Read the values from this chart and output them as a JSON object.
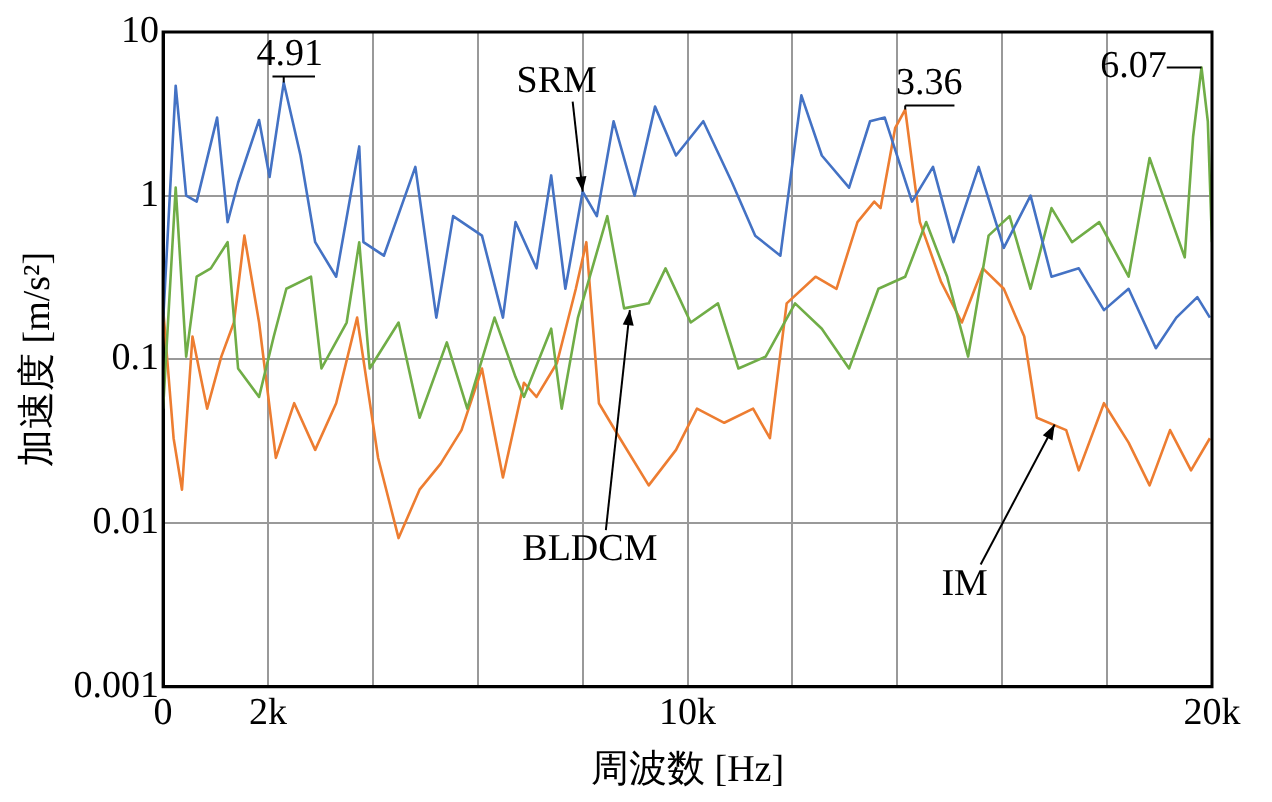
{
  "chart_data": {
    "type": "line",
    "xlabel": "周波数 [Hz]",
    "ylabel": "加速度 [m/s²]",
    "log": "y",
    "grid": true,
    "legend": false,
    "marker": "none",
    "line_style": "solid",
    "xlim": [
      0,
      20000
    ],
    "xticks": [
      0,
      {
        "value": 2000,
        "label": "2k"
      },
      {
        "value": 4000,
        "label": null
      },
      {
        "value": 6000,
        "label": null
      },
      {
        "value": 8000,
        "label": null
      },
      {
        "value": 10000,
        "label": "10k"
      },
      {
        "value": 12000,
        "label": null
      },
      {
        "value": 14000,
        "label": null
      },
      {
        "value": 16000,
        "label": null
      },
      {
        "value": 18000,
        "label": null
      },
      {
        "value": 20000,
        "label": "20k"
      }
    ],
    "ylim": [
      0.001,
      10
    ],
    "yticks": [
      0.001,
      0.01,
      0.1,
      1,
      10
    ],
    "series": [
      {
        "name": "SRM",
        "color": "#4472c4",
        "x": [
          0,
          240,
          440,
          640,
          1030,
          1230,
          1430,
          1830,
          2030,
          2300,
          2620,
          2900,
          3300,
          3740,
          3820,
          4210,
          4810,
          5210,
          5530,
          6080,
          6480,
          6720,
          7120,
          7400,
          7670,
          8000,
          8270,
          8590,
          8990,
          9380,
          9780,
          10300,
          10850,
          11290,
          11770,
          12170,
          12560,
          13080,
          13480,
          13760,
          14280,
          14680,
          15070,
          15550,
          16030,
          16540,
          16940,
          17460,
          17940,
          18410,
          18930,
          19320,
          19720,
          19960
        ],
        "values": [
          0.17,
          4.7,
          1.0,
          0.92,
          3.0,
          0.69,
          1.2,
          2.9,
          1.3,
          4.91,
          1.76,
          0.52,
          0.32,
          2.0,
          0.52,
          0.43,
          1.5,
          0.18,
          0.75,
          0.57,
          0.18,
          0.69,
          0.36,
          1.33,
          0.27,
          1.06,
          0.75,
          2.85,
          1.0,
          3.5,
          1.76,
          2.85,
          1.2,
          0.57,
          0.43,
          4.1,
          1.76,
          1.12,
          2.85,
          3.0,
          0.92,
          1.5,
          0.52,
          1.5,
          0.48,
          1.0,
          0.32,
          0.36,
          0.2,
          0.27,
          0.117,
          0.18,
          0.24,
          0.18
        ]
      },
      {
        "name": "BLDCM",
        "color": "#70ad47",
        "x": [
          0,
          240,
          440,
          640,
          910,
          1230,
          1430,
          1830,
          2110,
          2350,
          2820,
          3020,
          3500,
          3740,
          3940,
          4490,
          4890,
          5410,
          5800,
          6320,
          6720,
          6880,
          7400,
          7600,
          7910,
          8470,
          8790,
          9260,
          9580,
          10060,
          10580,
          10970,
          11490,
          12050,
          12560,
          13080,
          13640,
          14150,
          14550,
          14950,
          15350,
          15740,
          16140,
          16540,
          16940,
          17330,
          17850,
          18410,
          18810,
          19200,
          19480,
          19640,
          19800,
          19920,
          20000
        ],
        "values": [
          0.05,
          1.12,
          0.104,
          0.32,
          0.36,
          0.52,
          0.088,
          0.059,
          0.138,
          0.27,
          0.32,
          0.088,
          0.168,
          0.52,
          0.088,
          0.168,
          0.044,
          0.127,
          0.05,
          0.18,
          0.078,
          0.059,
          0.154,
          0.05,
          0.18,
          0.75,
          0.205,
          0.22,
          0.36,
          0.168,
          0.22,
          0.088,
          0.104,
          0.22,
          0.154,
          0.088,
          0.27,
          0.32,
          0.69,
          0.32,
          0.104,
          0.57,
          0.75,
          0.27,
          0.84,
          0.52,
          0.69,
          0.32,
          1.7,
          0.75,
          0.42,
          2.3,
          6.07,
          2.85,
          0.52
        ]
      },
      {
        "name": "IM",
        "color": "#ed7d31",
        "x": [
          0,
          200,
          360,
          560,
          840,
          1110,
          1350,
          1550,
          1830,
          2150,
          2500,
          2900,
          3300,
          3700,
          4100,
          4490,
          4890,
          5290,
          5690,
          6080,
          6480,
          6880,
          7120,
          7510,
          7870,
          8070,
          8310,
          8710,
          9260,
          9780,
          10180,
          10700,
          11250,
          11570,
          11890,
          12440,
          12840,
          13240,
          13560,
          13680,
          13960,
          14150,
          14430,
          14830,
          15230,
          15630,
          16030,
          16420,
          16660,
          17220,
          17460,
          17940,
          18410,
          18810,
          19200,
          19600,
          19960
        ],
        "values": [
          0.205,
          0.033,
          0.016,
          0.138,
          0.05,
          0.104,
          0.168,
          0.57,
          0.168,
          0.025,
          0.054,
          0.028,
          0.054,
          0.18,
          0.025,
          0.0081,
          0.016,
          0.023,
          0.037,
          0.088,
          0.019,
          0.072,
          0.059,
          0.095,
          0.27,
          0.52,
          0.054,
          0.033,
          0.017,
          0.028,
          0.05,
          0.041,
          0.05,
          0.033,
          0.22,
          0.32,
          0.27,
          0.69,
          0.92,
          0.84,
          2.6,
          3.36,
          0.69,
          0.3,
          0.168,
          0.36,
          0.27,
          0.138,
          0.044,
          0.037,
          0.021,
          0.054,
          0.031,
          0.017,
          0.037,
          0.021,
          0.033
        ]
      }
    ],
    "annotations": [
      {
        "text": "4.91",
        "x": 2300,
        "y": 4.91
      },
      {
        "text": "3.36",
        "x": 14150,
        "y": 3.36
      },
      {
        "text": "6.07",
        "x": 19800,
        "y": 6.07
      }
    ]
  }
}
